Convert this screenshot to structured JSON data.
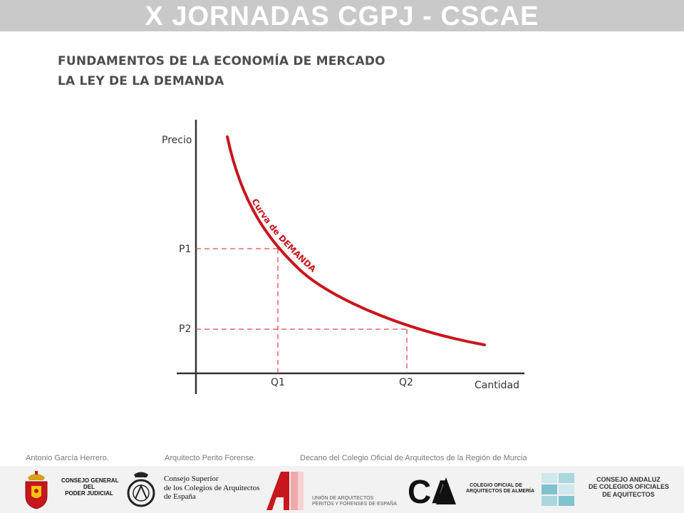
{
  "header": {
    "banner_title": "X JORNADAS CGPJ - CSCAE",
    "title_line1": "FUNDAMENTOS DE LA ECONOMÍA DE MERCADO",
    "title_line2": "LA LEY DE LA DEMANDA"
  },
  "diagram": {
    "y_axis_label": "Precio",
    "x_axis_label": "Cantidad",
    "curve_label": "Curva de DEMANDA",
    "price_labels": [
      "P1",
      "P2"
    ],
    "quantity_labels": [
      "Q1",
      "Q2"
    ],
    "colors": {
      "curve": "#c8161d",
      "axes": "#333333",
      "guides": "#e24c4c"
    }
  },
  "credits": {
    "author": "Antonio García Herrero.",
    "role": "Arquitecto Perito Forense.",
    "position": "Decano del Colegio Oficial de Arquitectos de la Región de Murcia"
  },
  "logos": {
    "cgpj": [
      "CONSEJO GENERAL",
      "DEL",
      "PODER JUDICIAL"
    ],
    "cscae": [
      "Consejo Superior",
      "de los Colegios de Arquitectos",
      "de España"
    ],
    "upfe": [
      "UNIÓN DE ARQUITECTOS",
      "PERITOS Y FORENSES DE ESPAÑA"
    ],
    "coaa_monogram": "CA",
    "coaa": [
      "COLEGIO OFICIAL DE",
      "ARQUITECTOS DE ALMERÍA"
    ],
    "cacoa": [
      "CONSEJO ANDALUZ",
      "DE COLEGIOS OFICIALES",
      "DE AQUITECTOS"
    ]
  }
}
